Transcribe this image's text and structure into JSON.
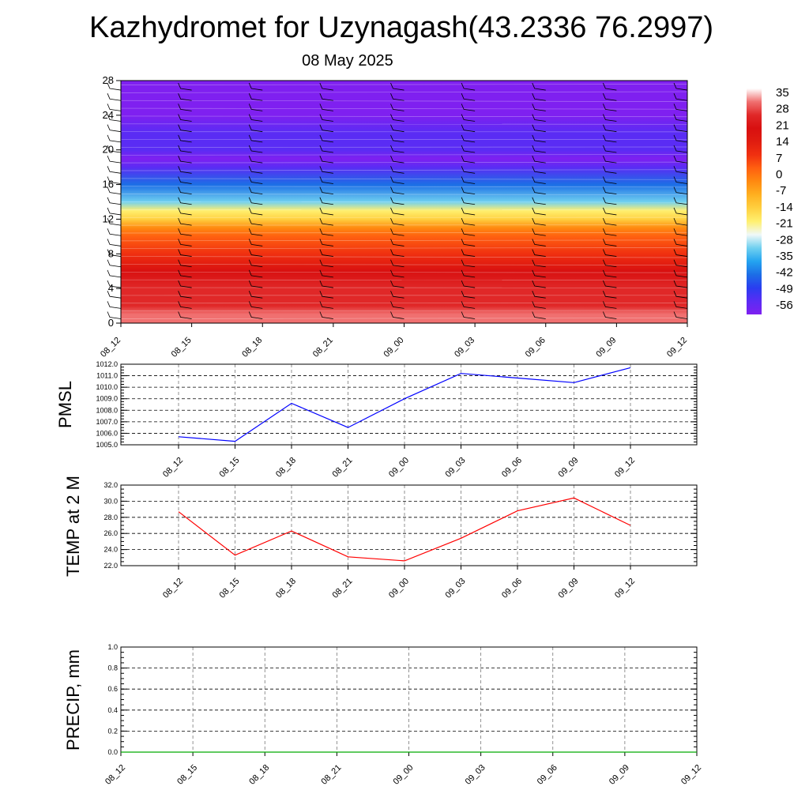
{
  "figure": {
    "title": "Kazhydromet for Uzynagash(43.2336 76.2997)",
    "subtitle": "08 May 2025"
  },
  "colors": {
    "pmsl_line": "#0000ff",
    "temp_line": "#ff0000",
    "precip_line": "#00aa00",
    "colorbar": [
      "#7f20f0",
      "#5a2cf4",
      "#2a3df0",
      "#1c6ee6",
      "#24a4f0",
      "#70d0f0",
      "#f0f8f8",
      "#fff070",
      "#ffd040",
      "#ffb020",
      "#ff8a10",
      "#ff6010",
      "#f03010",
      "#e01c10",
      "#d81010",
      "#e02828",
      "#f07070",
      "#ffffff"
    ]
  },
  "chart_data": [
    {
      "type": "heatmap",
      "name": "upper-air cross-section",
      "y_ticks": [
        "0",
        "4",
        "8",
        "12",
        "16",
        "20",
        "24",
        "28"
      ],
      "ylim": [
        0,
        28
      ],
      "x": [
        "08_12",
        "08_15",
        "08_18",
        "08_21",
        "09_00",
        "09_03",
        "09_06",
        "09_09",
        "09_12"
      ],
      "color_levels": [
        "35",
        "28",
        "21",
        "14",
        "7",
        "0",
        "-7",
        "-14",
        "-21",
        "-28",
        "-35",
        "-42",
        "-49",
        "-56"
      ],
      "value_range": [
        -60,
        38
      ],
      "profile_levels": [
        0,
        1,
        2,
        4,
        6,
        8,
        10,
        11,
        12,
        13,
        14,
        16,
        18,
        19,
        20,
        22,
        24,
        28
      ],
      "profile_values": [
        34,
        31,
        28,
        24,
        19,
        12,
        3,
        -4,
        -12,
        -20,
        -30,
        -44,
        -55,
        -59,
        -56,
        -54,
        -60,
        -62
      ],
      "wind_barbs": true
    },
    {
      "type": "line",
      "ylabel": "PMSL",
      "ylim": [
        1005.0,
        1012.0
      ],
      "y_ticks": [
        "1005.0",
        "1006.0",
        "1007.0",
        "1008.0",
        "1009.0",
        "1010.0",
        "1011.0",
        "1012.0"
      ],
      "categories": [
        "08_12",
        "08_15",
        "08_18",
        "08_21",
        "09_00",
        "09_03",
        "09_06",
        "09_09",
        "09_12"
      ],
      "values": [
        1005.7,
        1005.3,
        1008.6,
        1006.5,
        1009.0,
        1011.2,
        1010.8,
        1010.4,
        1011.7
      ],
      "grid": true
    },
    {
      "type": "line",
      "ylabel": "TEMP at 2 M",
      "ylim": [
        22.0,
        32.0
      ],
      "y_ticks": [
        "22.0",
        "24.0",
        "26.0",
        "28.0",
        "30.0",
        "32.0"
      ],
      "categories": [
        "08_12",
        "08_15",
        "08_18",
        "08_21",
        "09_00",
        "09_03",
        "09_06",
        "09_09",
        "09_12"
      ],
      "values": [
        28.7,
        23.3,
        26.3,
        23.1,
        22.6,
        25.4,
        28.8,
        30.4,
        27.0
      ],
      "grid": true
    },
    {
      "type": "line",
      "ylabel": "PRECIP, mm",
      "ylim": [
        0.0,
        1.0
      ],
      "y_ticks": [
        "0.0",
        "0.2",
        "0.4",
        "0.6",
        "0.8",
        "1.0"
      ],
      "x": [
        "08_12",
        "08_15",
        "08_18",
        "08_21",
        "09_00",
        "09_03",
        "09_06",
        "09_09",
        "09_12"
      ],
      "values": [
        0,
        0,
        0,
        0,
        0,
        0,
        0,
        0,
        0
      ],
      "grid": true
    }
  ]
}
